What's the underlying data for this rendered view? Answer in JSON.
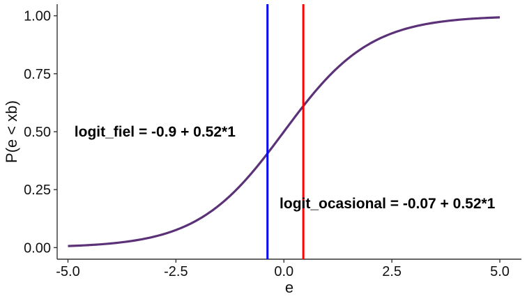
{
  "chart_data": {
    "type": "line",
    "xlabel": "e",
    "ylabel": "P(e < xb)",
    "xlim": [
      -5.25,
      5.5
    ],
    "ylim": [
      -0.05,
      1.05
    ],
    "x_ticks": [
      -5.0,
      -2.5,
      0.0,
      2.5,
      5.0
    ],
    "x_tick_labels": [
      "-5.0",
      "-2.5",
      "0.0",
      "2.5",
      "5.0"
    ],
    "y_ticks": [
      0.0,
      0.25,
      0.5,
      0.75,
      1.0
    ],
    "y_tick_labels": [
      "0.00",
      "0.25",
      "0.50",
      "0.75",
      "1.00"
    ],
    "grid": false,
    "curve": {
      "name": "",
      "color": "#5b3177",
      "function": "logistic",
      "x_range": [
        -5.0,
        5.0
      ],
      "x": [
        -5.0,
        -4.0,
        -3.0,
        -2.5,
        -2.0,
        -1.5,
        -1.0,
        -0.5,
        0.0,
        0.5,
        1.0,
        1.5,
        2.0,
        2.5,
        3.0,
        4.0,
        5.0
      ],
      "y": [
        0.007,
        0.018,
        0.047,
        0.076,
        0.119,
        0.182,
        0.269,
        0.378,
        0.5,
        0.622,
        0.731,
        0.818,
        0.881,
        0.924,
        0.953,
        0.982,
        0.993
      ]
    },
    "vlines": [
      {
        "x": -0.38,
        "color": "#0000ff"
      },
      {
        "x": 0.45,
        "color": "#ff0000"
      }
    ],
    "annotations": [
      {
        "text": "logit_fiel =  -0.9 + 0.52*1",
        "x": -4.85,
        "y": 0.5
      },
      {
        "text": "logit_ocasional =  -0.07 + 0.52*1",
        "x": -0.1,
        "y": 0.19
      }
    ]
  }
}
